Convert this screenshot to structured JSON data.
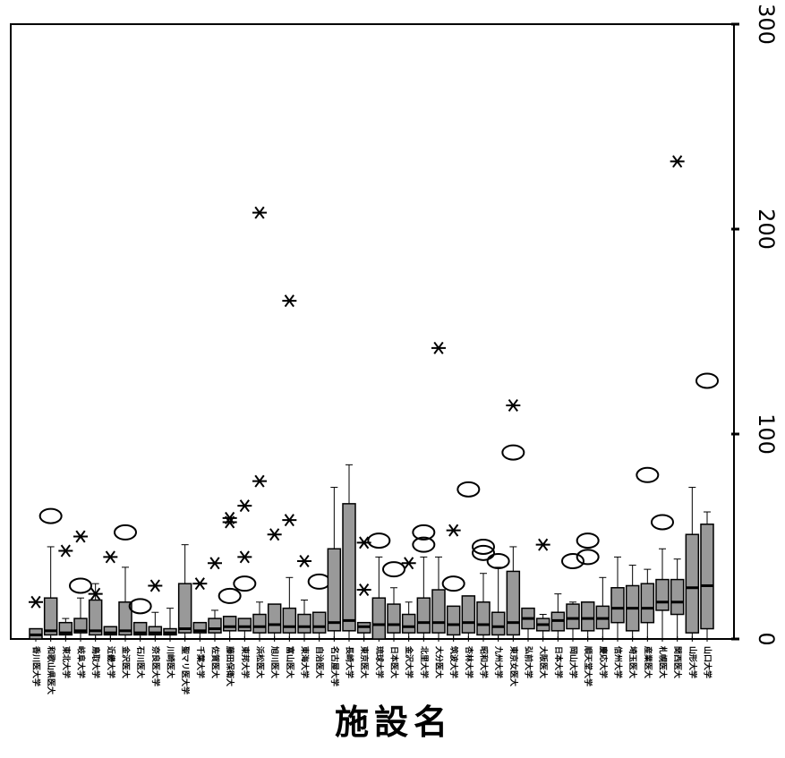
{
  "chart_data": {
    "type": "box",
    "x_label": "施設名",
    "ylim": [
      0,
      300
    ],
    "yticks": [
      0,
      100,
      200,
      300
    ],
    "box_color": "#999999",
    "categories": [
      "香川医大学",
      "和歌山県医大",
      "東北大学",
      "岐阜大学",
      "鳥取大学",
      "近畿大学",
      "金沢医大",
      "石川医大",
      "奈良医大学",
      "川崎医大",
      "聖マリ医大学",
      "千葉大学",
      "佐賀医大",
      "藤田保衛大",
      "東邦大学",
      "浜松医大",
      "旭川医大",
      "富山医大",
      "東海大学",
      "自治医大",
      "名古屋大学",
      "長崎大学",
      "東京医大",
      "琉球大学",
      "日本医大",
      "金沢大学",
      "北里大学",
      "大分医大",
      "筑波大学",
      "杏林大学",
      "昭和大学",
      "九州大学",
      "東京女医大",
      "弘前大学",
      "大阪医大",
      "日本大学",
      "岡山大学",
      "順天堂大学",
      "慶応大学",
      "信州大学",
      "埼玉医大",
      "産業医大",
      "札幌医大",
      "関西医大",
      "山形大学",
      "山口大学"
    ],
    "boxes": [
      {
        "low": 0,
        "q1": 0,
        "median": 2,
        "q3": 5,
        "high": 5,
        "outliers": [],
        "extremes": [
          18
        ]
      },
      {
        "low": 0,
        "q1": 2,
        "median": 4,
        "q3": 20,
        "high": 45,
        "outliers": [
          60
        ],
        "extremes": []
      },
      {
        "low": 0,
        "q1": 2,
        "median": 3,
        "q3": 8,
        "high": 10,
        "outliers": [],
        "extremes": [
          43
        ]
      },
      {
        "low": 0,
        "q1": 3,
        "median": 4,
        "q3": 10,
        "high": 20,
        "outliers": [
          26
        ],
        "extremes": [
          50
        ]
      },
      {
        "low": 0,
        "q1": 2,
        "median": 4,
        "q3": 19,
        "high": 27,
        "outliers": [],
        "extremes": [
          22
        ]
      },
      {
        "low": 0,
        "q1": 2,
        "median": 3,
        "q3": 6,
        "high": 6,
        "outliers": [],
        "extremes": [
          40
        ]
      },
      {
        "low": 0,
        "q1": 2,
        "median": 4,
        "q3": 18,
        "high": 35,
        "outliers": [
          52
        ],
        "extremes": []
      },
      {
        "low": 0,
        "q1": 2,
        "median": 3,
        "q3": 8,
        "high": 8,
        "outliers": [
          16
        ],
        "extremes": []
      },
      {
        "low": 0,
        "q1": 2,
        "median": 3,
        "q3": 6,
        "high": 13,
        "outliers": [],
        "extremes": [
          26
        ]
      },
      {
        "low": 0,
        "q1": 2,
        "median": 3,
        "q3": 5,
        "high": 15,
        "outliers": [],
        "extremes": []
      },
      {
        "low": 0,
        "q1": 3,
        "median": 5,
        "q3": 27,
        "high": 46,
        "outliers": [],
        "extremes": []
      },
      {
        "low": 0,
        "q1": 3,
        "median": 4,
        "q3": 8,
        "high": 8,
        "outliers": [],
        "extremes": [
          27
        ]
      },
      {
        "low": 0,
        "q1": 3,
        "median": 5,
        "q3": 10,
        "high": 14,
        "outliers": [],
        "extremes": [
          37
        ]
      },
      {
        "low": 0,
        "q1": 4,
        "median": 6,
        "q3": 11,
        "high": 11,
        "outliers": [
          21
        ],
        "extremes": [
          57,
          59
        ]
      },
      {
        "low": 0,
        "q1": 4,
        "median": 6,
        "q3": 10,
        "high": 10,
        "outliers": [
          27
        ],
        "extremes": [
          40,
          65
        ]
      },
      {
        "low": 0,
        "q1": 3,
        "median": 6,
        "q3": 12,
        "high": 18,
        "outliers": [],
        "extremes": [
          208,
          77
        ]
      },
      {
        "low": 0,
        "q1": 3,
        "median": 7,
        "q3": 17,
        "high": 17,
        "outliers": [],
        "extremes": [
          51
        ]
      },
      {
        "low": 0,
        "q1": 3,
        "median": 6,
        "q3": 15,
        "high": 30,
        "outliers": [],
        "extremes": [
          165,
          58
        ]
      },
      {
        "low": 0,
        "q1": 3,
        "median": 6,
        "q3": 12,
        "high": 19,
        "outliers": [],
        "extremes": [
          38
        ]
      },
      {
        "low": 0,
        "q1": 3,
        "median": 6,
        "q3": 13,
        "high": 13,
        "outliers": [
          28
        ],
        "extremes": []
      },
      {
        "low": 0,
        "q1": 4,
        "median": 8,
        "q3": 44,
        "high": 74,
        "outliers": [],
        "extremes": []
      },
      {
        "low": 0,
        "q1": 4,
        "median": 9,
        "q3": 66,
        "high": 85,
        "outliers": [],
        "extremes": []
      },
      {
        "low": 0,
        "q1": 3,
        "median": 6,
        "q3": 8,
        "high": 8,
        "outliers": [],
        "extremes": [
          47,
          24
        ]
      },
      {
        "low": 0,
        "q1": 0,
        "median": 7,
        "q3": 20,
        "high": 40,
        "outliers": [
          48
        ],
        "extremes": []
      },
      {
        "low": 0,
        "q1": 3,
        "median": 7,
        "q3": 17,
        "high": 25,
        "outliers": [
          34
        ],
        "extremes": []
      },
      {
        "low": 0,
        "q1": 3,
        "median": 6,
        "q3": 12,
        "high": 18,
        "outliers": [],
        "extremes": [
          37
        ]
      },
      {
        "low": 0,
        "q1": 3,
        "median": 8,
        "q3": 20,
        "high": 40,
        "outliers": [
          46,
          52
        ],
        "extremes": []
      },
      {
        "low": 0,
        "q1": 3,
        "median": 8,
        "q3": 24,
        "high": 40,
        "outliers": [],
        "extremes": [
          142
        ]
      },
      {
        "low": 0,
        "q1": 2,
        "median": 7,
        "q3": 16,
        "high": 16,
        "outliers": [
          27
        ],
        "extremes": [
          53
        ]
      },
      {
        "low": 0,
        "q1": 3,
        "median": 8,
        "q3": 21,
        "high": 21,
        "outliers": [
          73
        ],
        "extremes": []
      },
      {
        "low": 0,
        "q1": 2,
        "median": 7,
        "q3": 18,
        "high": 32,
        "outliers": [
          42,
          45
        ],
        "extremes": []
      },
      {
        "low": 0,
        "q1": 2,
        "median": 6,
        "q3": 13,
        "high": 35,
        "outliers": [
          38
        ],
        "extremes": []
      },
      {
        "low": 0,
        "q1": 2,
        "median": 8,
        "q3": 33,
        "high": 45,
        "outliers": [
          91
        ],
        "extremes": [
          114
        ]
      },
      {
        "low": 0,
        "q1": 5,
        "median": 10,
        "q3": 15,
        "high": 15,
        "outliers": [],
        "extremes": []
      },
      {
        "low": 0,
        "q1": 4,
        "median": 7,
        "q3": 10,
        "high": 12,
        "outliers": [],
        "extremes": [
          46
        ]
      },
      {
        "low": 0,
        "q1": 4,
        "median": 9,
        "q3": 13,
        "high": 22,
        "outliers": [],
        "extremes": []
      },
      {
        "low": 0,
        "q1": 5,
        "median": 10,
        "q3": 17,
        "high": 18,
        "outliers": [
          38
        ],
        "extremes": []
      },
      {
        "low": 0,
        "q1": 4,
        "median": 10,
        "q3": 18,
        "high": 18,
        "outliers": [
          40,
          48
        ],
        "extremes": []
      },
      {
        "low": 0,
        "q1": 5,
        "median": 10,
        "q3": 16,
        "high": 30,
        "outliers": [],
        "extremes": []
      },
      {
        "low": 0,
        "q1": 8,
        "median": 15,
        "q3": 25,
        "high": 40,
        "outliers": [],
        "extremes": []
      },
      {
        "low": 0,
        "q1": 4,
        "median": 15,
        "q3": 26,
        "high": 36,
        "outliers": [],
        "extremes": []
      },
      {
        "low": 0,
        "q1": 8,
        "median": 15,
        "q3": 27,
        "high": 34,
        "outliers": [
          80
        ],
        "extremes": []
      },
      {
        "low": 0,
        "q1": 14,
        "median": 18,
        "q3": 29,
        "high": 44,
        "outliers": [
          57
        ],
        "extremes": []
      },
      {
        "low": 0,
        "q1": 12,
        "median": 18,
        "q3": 29,
        "high": 39,
        "outliers": [],
        "extremes": [
          233
        ]
      },
      {
        "low": 0,
        "q1": 3,
        "median": 25,
        "q3": 51,
        "high": 74,
        "outliers": [],
        "extremes": []
      },
      {
        "low": 0,
        "q1": 5,
        "median": 26,
        "q3": 56,
        "high": 62,
        "outliers": [
          126
        ],
        "extremes": []
      }
    ]
  }
}
